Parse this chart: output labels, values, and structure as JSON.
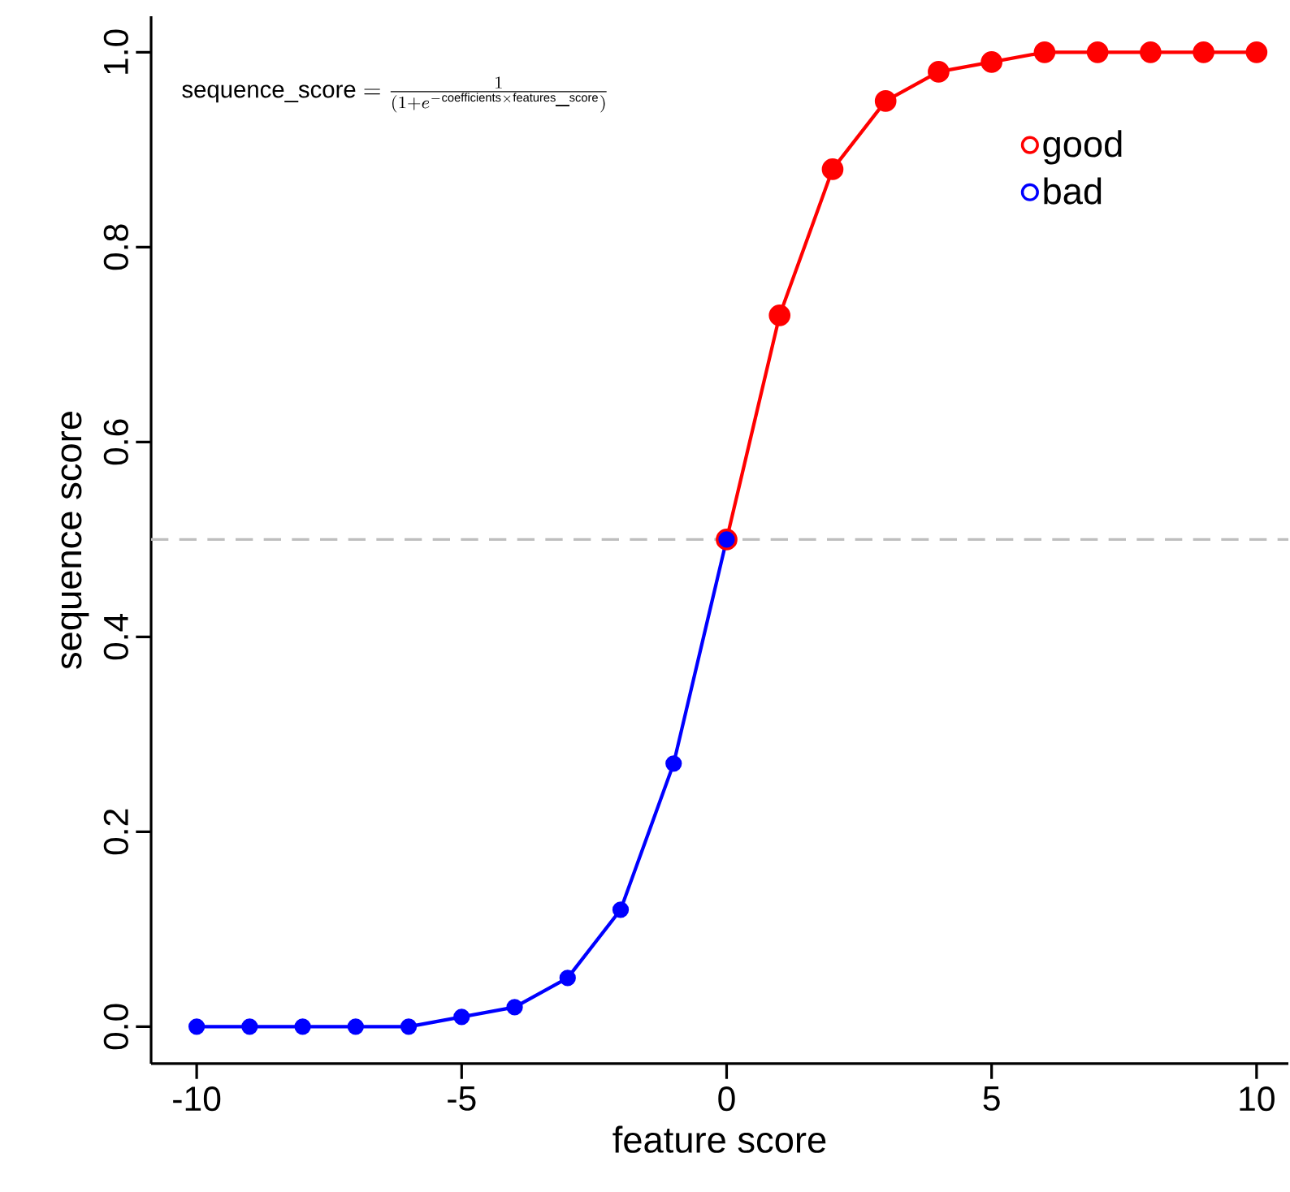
{
  "chart_data": {
    "type": "line",
    "xlabel": "feature score",
    "ylabel": "sequence score",
    "annotations": [
      "\\mathrm{sequence\\_score} = \\frac{1}{(1+e^{-\\mathrm{coefficients}\\times\\mathrm{features\\_score}})}"
    ],
    "series": [
      {
        "name": "good",
        "color": "#ff0000",
        "x": [
          0,
          1,
          2,
          3,
          4,
          5,
          6,
          7,
          8,
          9,
          10
        ],
        "values": [
          0.5,
          0.73,
          0.88,
          0.95,
          0.98,
          0.99,
          1.0,
          1.0,
          1.0,
          1.0,
          1.0
        ]
      },
      {
        "name": "bad",
        "color": "#0000ff",
        "x": [
          -10,
          -9,
          -8,
          -7,
          -6,
          -5,
          -4,
          -3,
          -2,
          -1,
          0
        ],
        "values": [
          0.0,
          0.0,
          0.0,
          0.0,
          0.0,
          0.01,
          0.02,
          0.05,
          0.12,
          0.27,
          0.5
        ]
      }
    ],
    "xlim": [
      -10.86,
      10.6
    ],
    "ylim": [
      -0.038,
      1.037
    ],
    "xticks": [
      -10,
      -5,
      0,
      5,
      10
    ],
    "yticks": [
      {
        "value": 0,
        "label": "0.0"
      },
      {
        "value": 0.2,
        "label": "0.2"
      },
      {
        "value": 0.4,
        "label": "0.4"
      },
      {
        "value": 0.6,
        "label": "0.6"
      },
      {
        "value": 0.8,
        "label": "0.8"
      },
      {
        "value": 1,
        "label": "1.0"
      }
    ],
    "ref_lines": [
      {
        "axis": "y",
        "value": 0.5,
        "color": "#bebebe",
        "line_style": "dashed"
      }
    ],
    "legend": "top right",
    "marker": "circle",
    "line_style": "solid",
    "grid": false
  }
}
